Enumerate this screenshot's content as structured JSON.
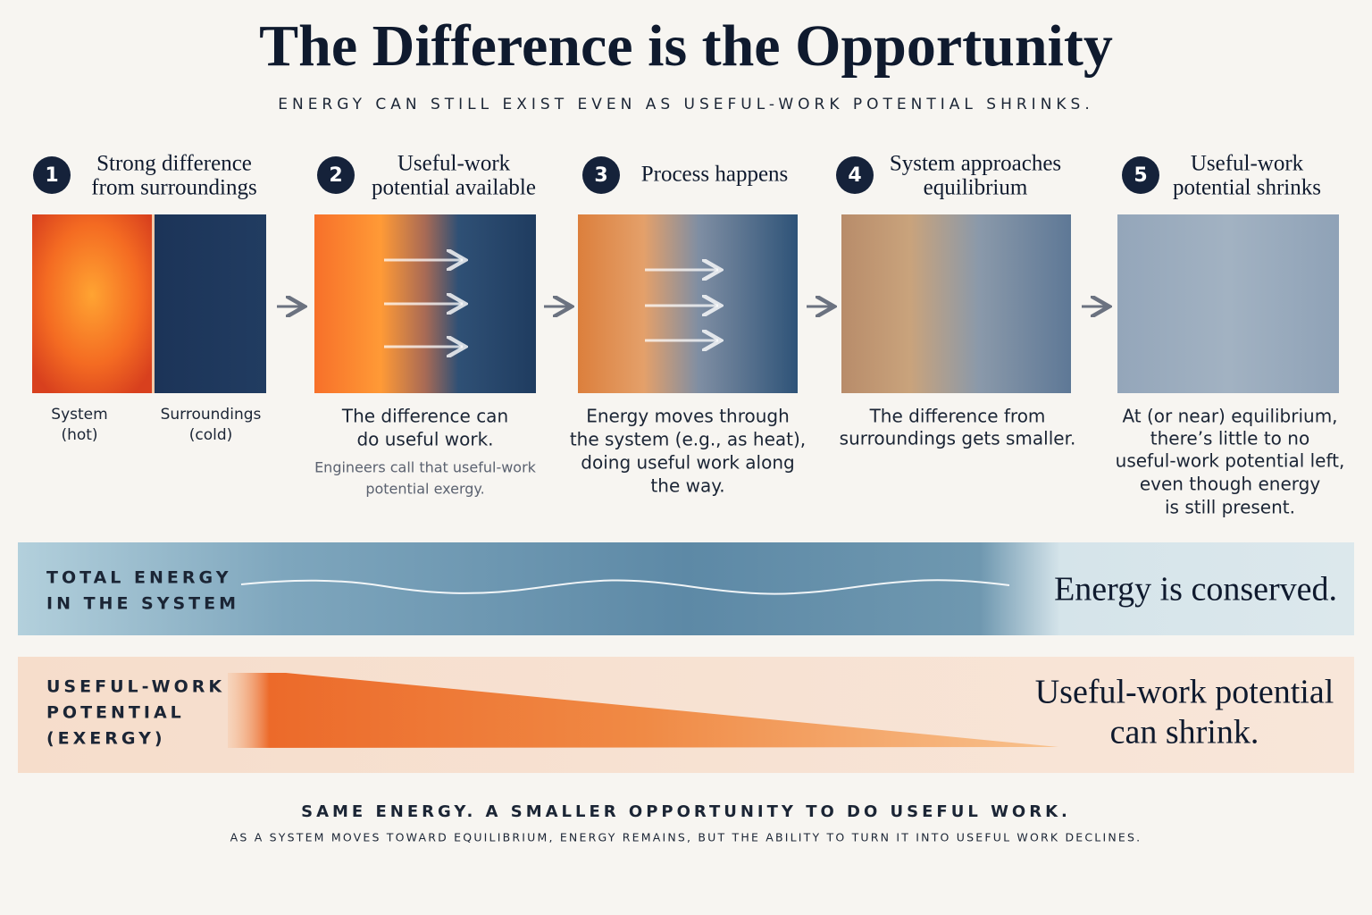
{
  "header": {
    "title": "The Difference is the Opportunity",
    "subtitle": "ENERGY CAN STILL EXIST EVEN AS USEFUL-WORK POTENTIAL SHRINKS."
  },
  "steps": [
    {
      "number": 1,
      "heading": [
        "Strong difference",
        "from surroundings"
      ],
      "labels": [
        [
          "System",
          "(hot)"
        ],
        [
          "Surroundings",
          "(cold)"
        ]
      ]
    },
    {
      "number": 2,
      "heading": [
        "Useful-work",
        "potential available"
      ],
      "caption": [
        "The difference can",
        "do useful work."
      ],
      "note": [
        "Engineers call that useful-work",
        "potential exergy."
      ]
    },
    {
      "number": 3,
      "heading": [
        "Process happens"
      ],
      "caption": [
        "Energy moves through",
        "the system (e.g., as heat),",
        "doing useful work along",
        "the way."
      ]
    },
    {
      "number": 4,
      "heading": [
        "System approaches",
        "equilibrium"
      ],
      "caption": [
        "The difference from",
        "surroundings gets smaller."
      ]
    },
    {
      "number": 5,
      "heading": [
        "Useful-work",
        "potential shrinks"
      ],
      "caption": [
        "At (or near) equilibrium,",
        "there’s little to no",
        "useful-work potential left,",
        "even though energy",
        "is still present."
      ]
    }
  ],
  "bands": [
    {
      "label": [
        "TOTAL ENERGY",
        "IN THE SYSTEM"
      ],
      "statement": [
        "Energy is conserved."
      ]
    },
    {
      "label": [
        "USEFUL-WORK",
        "POTENTIAL",
        "(EXERGY)"
      ],
      "statement": [
        "Useful-work potential",
        "can shrink."
      ]
    }
  ],
  "footer": {
    "headline": "SAME ENERGY. A SMALLER OPPORTUNITY TO DO USEFUL WORK.",
    "subline": "AS A SYSTEM MOVES TOWARD EQUILIBRIUM, ENERGY REMAINS, BUT THE ABILITY TO TURN IT INTO USEFUL WORK DECLINES."
  }
}
